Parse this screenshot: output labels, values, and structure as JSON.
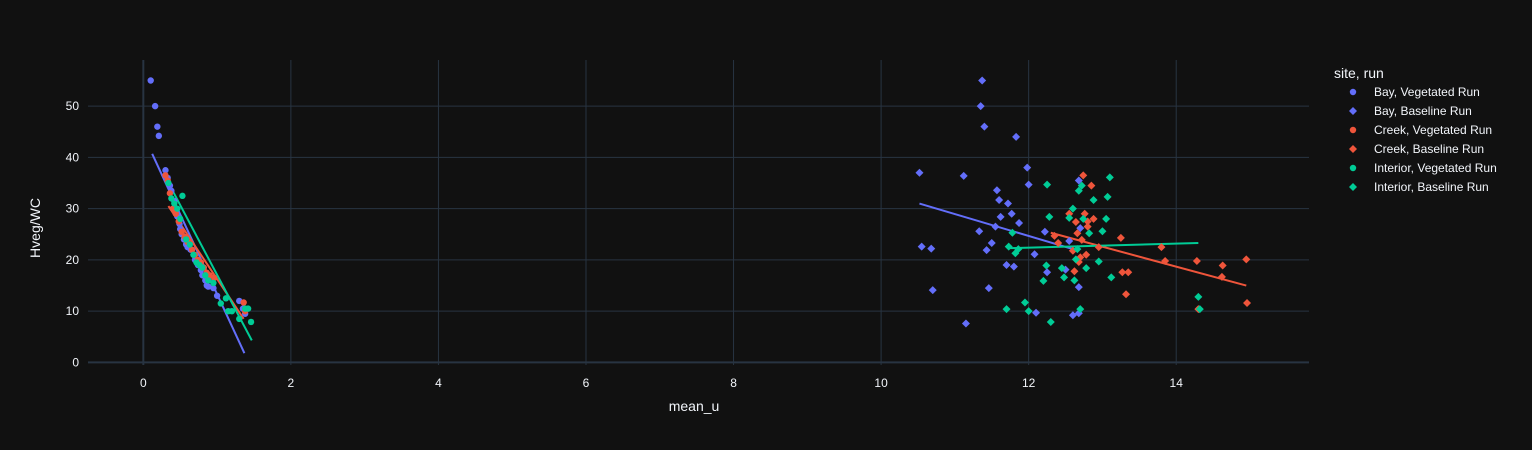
{
  "chart_data": {
    "type": "scatter",
    "xlabel": "mean_u",
    "ylabel": "Hveg/WC",
    "xlim": [
      -0.75,
      15.8
    ],
    "ylim": [
      -0.5,
      59
    ],
    "xticks": [
      0,
      2,
      4,
      6,
      8,
      10,
      12,
      14
    ],
    "yticks": [
      0,
      10,
      20,
      30,
      40,
      50
    ],
    "grid": true,
    "background": "#111111",
    "grid_color": "#283442",
    "zeroline_color": "#283442",
    "legend": {
      "title": "site, run",
      "placement": "right"
    },
    "series": [
      {
        "name": "Bay, Vegetated Run",
        "color": "#636efa",
        "marker": "circle",
        "points": [
          [
            0.1,
            55
          ],
          [
            0.16,
            50
          ],
          [
            0.19,
            46
          ],
          [
            0.21,
            44.2
          ],
          [
            0.3,
            37.5
          ],
          [
            0.33,
            36
          ],
          [
            0.36,
            34.5
          ],
          [
            0.38,
            33.5
          ],
          [
            0.42,
            31.5
          ],
          [
            0.44,
            30
          ],
          [
            0.46,
            28.5
          ],
          [
            0.49,
            27
          ],
          [
            0.5,
            26
          ],
          [
            0.52,
            25
          ],
          [
            0.55,
            24
          ],
          [
            0.58,
            23
          ],
          [
            0.6,
            22.5
          ],
          [
            0.64,
            22
          ],
          [
            0.68,
            21
          ],
          [
            0.7,
            20
          ],
          [
            0.74,
            19
          ],
          [
            0.78,
            18
          ],
          [
            0.8,
            17
          ],
          [
            0.84,
            16
          ],
          [
            0.86,
            15
          ],
          [
            0.88,
            14.8
          ],
          [
            0.95,
            14.5
          ],
          [
            1.0,
            13
          ],
          [
            1.3,
            12
          ],
          [
            1.35,
            10.5
          ],
          [
            1.38,
            9.5
          ]
        ],
        "trend": [
          [
            0.12,
            40.7
          ],
          [
            1.37,
            1.8
          ]
        ]
      },
      {
        "name": "Bay, Baseline Run",
        "color": "#636efa",
        "marker": "diamond",
        "points": [
          [
            10.52,
            37
          ],
          [
            10.55,
            22.6
          ],
          [
            10.68,
            22.2
          ],
          [
            10.7,
            14.1
          ],
          [
            11.12,
            36.4
          ],
          [
            11.15,
            7.6
          ],
          [
            11.33,
            25.6
          ],
          [
            11.35,
            50
          ],
          [
            11.37,
            55
          ],
          [
            11.4,
            46
          ],
          [
            11.43,
            21.9
          ],
          [
            11.46,
            14.5
          ],
          [
            11.5,
            23.3
          ],
          [
            11.55,
            26.5
          ],
          [
            11.57,
            33.6
          ],
          [
            11.6,
            31.7
          ],
          [
            11.62,
            28.4
          ],
          [
            11.7,
            19
          ],
          [
            11.72,
            31
          ],
          [
            11.77,
            29
          ],
          [
            11.8,
            18.7
          ],
          [
            11.83,
            44
          ],
          [
            11.87,
            27.2
          ],
          [
            11.98,
            38
          ],
          [
            12.0,
            34.7
          ],
          [
            12.08,
            21.1
          ],
          [
            12.1,
            9.7
          ],
          [
            12.22,
            25.5
          ],
          [
            12.25,
            17.6
          ],
          [
            12.5,
            18.1
          ],
          [
            12.6,
            9.2
          ],
          [
            12.68,
            9.6
          ],
          [
            12.68,
            14.7
          ],
          [
            12.7,
            26.2
          ],
          [
            12.68,
            35.5
          ],
          [
            12.55,
            23.7
          ]
        ],
        "trend": [
          [
            10.52,
            31
          ],
          [
            12.65,
            21.9
          ]
        ]
      },
      {
        "name": "Creek, Vegetated Run",
        "color": "#ef553b",
        "marker": "circle",
        "points": [
          [
            0.3,
            36.5
          ],
          [
            0.33,
            35.5
          ],
          [
            0.36,
            33
          ],
          [
            0.4,
            30
          ],
          [
            0.44,
            29
          ],
          [
            0.48,
            27.5
          ],
          [
            0.52,
            25.5
          ],
          [
            0.56,
            24.5
          ],
          [
            0.6,
            23.5
          ],
          [
            0.66,
            22
          ],
          [
            0.7,
            21
          ],
          [
            0.74,
            20
          ],
          [
            0.78,
            19.5
          ],
          [
            0.82,
            18.5
          ],
          [
            0.86,
            17.5
          ],
          [
            0.9,
            17
          ],
          [
            0.96,
            16.5
          ],
          [
            1.36,
            11.7
          ],
          [
            1.38,
            10
          ]
        ],
        "trend": [
          [
            0.34,
            30.5
          ],
          [
            1.36,
            8.5
          ]
        ]
      },
      {
        "name": "Creek, Baseline Run",
        "color": "#ef553b",
        "marker": "diamond",
        "points": [
          [
            12.35,
            24.7
          ],
          [
            12.4,
            23.3
          ],
          [
            12.55,
            29
          ],
          [
            12.6,
            21.8
          ],
          [
            12.62,
            17.8
          ],
          [
            12.64,
            27.4
          ],
          [
            12.66,
            25.2
          ],
          [
            12.68,
            19.6
          ],
          [
            12.7,
            20.5
          ],
          [
            12.72,
            23.9
          ],
          [
            12.74,
            36.5
          ],
          [
            12.76,
            29
          ],
          [
            12.78,
            21
          ],
          [
            12.8,
            26.5
          ],
          [
            12.8,
            27.5
          ],
          [
            12.85,
            34.5
          ],
          [
            12.88,
            28
          ],
          [
            12.95,
            22.5
          ],
          [
            13.25,
            24.3
          ],
          [
            13.27,
            17.6
          ],
          [
            13.32,
            13.3
          ],
          [
            13.35,
            17.6
          ],
          [
            13.8,
            22.5
          ],
          [
            13.85,
            19.8
          ],
          [
            14.28,
            19.8
          ],
          [
            14.3,
            10.4
          ],
          [
            14.62,
            16.7
          ],
          [
            14.63,
            18.9
          ],
          [
            14.95,
            20.1
          ],
          [
            14.96,
            11.6
          ]
        ],
        "trend": [
          [
            12.3,
            25.3
          ],
          [
            14.95,
            15
          ]
        ]
      },
      {
        "name": "Interior, Vegetated Run",
        "color": "#00cc96",
        "marker": "circle",
        "points": [
          [
            0.34,
            35
          ],
          [
            0.38,
            32
          ],
          [
            0.42,
            31
          ],
          [
            0.46,
            30
          ],
          [
            0.5,
            28
          ],
          [
            0.53,
            32.5
          ],
          [
            0.58,
            24
          ],
          [
            0.63,
            23
          ],
          [
            0.68,
            21
          ],
          [
            0.72,
            19.5
          ],
          [
            0.76,
            19
          ],
          [
            0.8,
            18.5
          ],
          [
            0.84,
            17
          ],
          [
            0.88,
            16
          ],
          [
            0.95,
            15.5
          ],
          [
            1.05,
            11.5
          ],
          [
            1.12,
            12.5
          ],
          [
            1.15,
            10
          ],
          [
            1.2,
            10
          ],
          [
            1.3,
            8.5
          ],
          [
            1.38,
            10.5
          ],
          [
            1.42,
            10.5
          ],
          [
            1.46,
            7.9
          ]
        ],
        "trend": [
          [
            0.36,
            34.5
          ],
          [
            1.47,
            4.3
          ]
        ]
      },
      {
        "name": "Interior, Baseline Run",
        "color": "#00cc96",
        "marker": "diamond",
        "points": [
          [
            11.7,
            10.4
          ],
          [
            11.73,
            22.6
          ],
          [
            11.78,
            25.3
          ],
          [
            11.82,
            21.3
          ],
          [
            11.86,
            22.1
          ],
          [
            11.95,
            11.7
          ],
          [
            12.0,
            10
          ],
          [
            12.2,
            15.9
          ],
          [
            12.24,
            18.9
          ],
          [
            12.25,
            34.7
          ],
          [
            12.28,
            28.4
          ],
          [
            12.3,
            7.9
          ],
          [
            12.45,
            18.4
          ],
          [
            12.48,
            16.6
          ],
          [
            12.55,
            28.2
          ],
          [
            12.6,
            30
          ],
          [
            12.62,
            16
          ],
          [
            12.64,
            20.1
          ],
          [
            12.66,
            22.1
          ],
          [
            12.68,
            33.5
          ],
          [
            12.7,
            10.4
          ],
          [
            12.72,
            34.5
          ],
          [
            12.74,
            28
          ],
          [
            12.78,
            18.4
          ],
          [
            12.82,
            25.2
          ],
          [
            12.88,
            31.7
          ],
          [
            12.95,
            19.7
          ],
          [
            13.0,
            25.6
          ],
          [
            13.05,
            28
          ],
          [
            13.07,
            32.3
          ],
          [
            13.1,
            36.1
          ],
          [
            13.12,
            16.6
          ],
          [
            14.3,
            12.8
          ],
          [
            14.32,
            10.4
          ]
        ],
        "trend": [
          [
            11.75,
            22.3
          ],
          [
            14.3,
            23.3
          ]
        ]
      }
    ]
  }
}
